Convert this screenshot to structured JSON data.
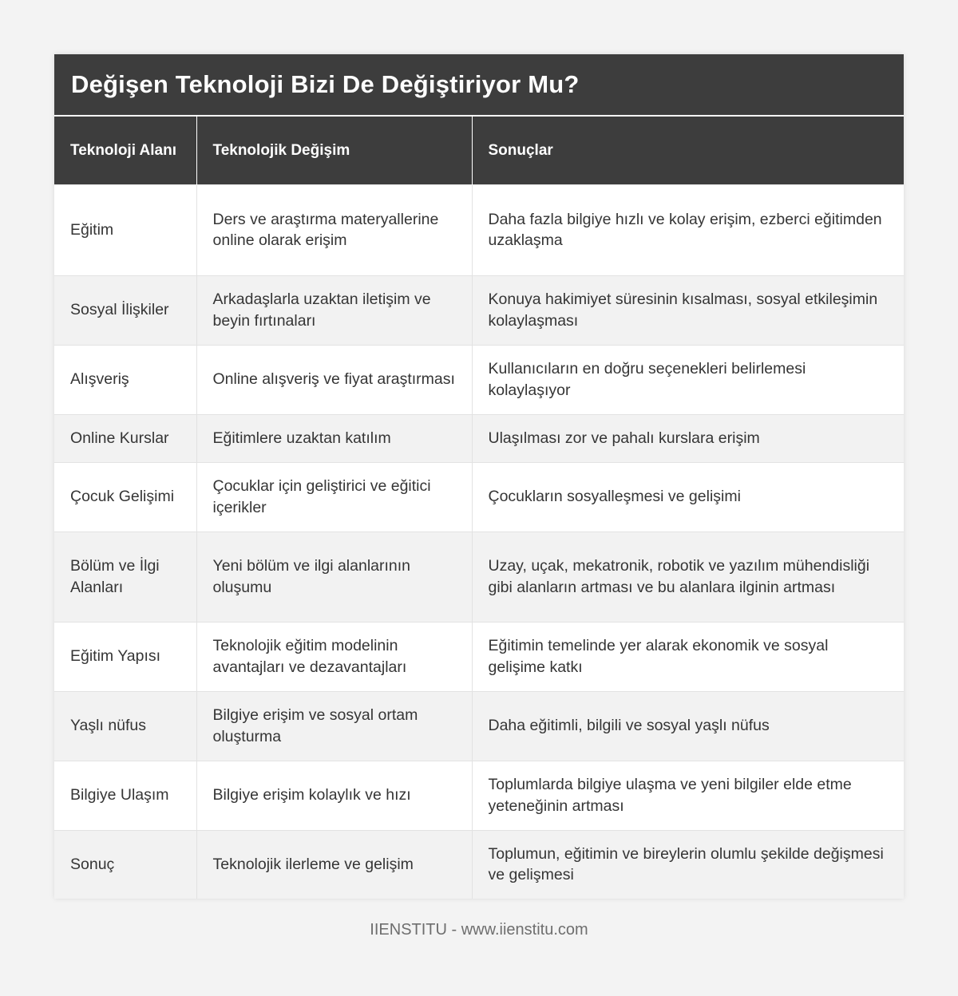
{
  "title": "Değişen Teknoloji Bizi De Değiştiriyor Mu?",
  "headers": [
    "Teknoloji Alanı",
    "Teknolojik Değişim",
    "Sonuçlar"
  ],
  "rows": [
    {
      "area": "Eğitim",
      "change": "Ders ve araştırma materyallerine online olarak erişim",
      "result": "Daha fazla bilgiye hızlı ve kolay erişim, ezberci eğitimden uzaklaşma"
    },
    {
      "area": "Sosyal İlişkiler",
      "change": "Arkadaşlarla uzaktan iletişim ve beyin fırtınaları",
      "result": "Konuya hakimiyet süresinin kısalması, sosyal etkileşimin kolaylaşması"
    },
    {
      "area": "Alışveriş",
      "change": "Online alışveriş ve fiyat araştırması",
      "result": "Kullanıcıların en doğru seçenekleri belirlemesi kolaylaşıyor"
    },
    {
      "area": "Online Kurslar",
      "change": "Eğitimlere uzaktan katılım",
      "result": "Ulaşılması zor ve pahalı kurslara erişim"
    },
    {
      "area": "Çocuk Gelişimi",
      "change": "Çocuklar için geliştirici ve eğitici içerikler",
      "result": "Çocukların sosyalleşmesi ve gelişimi"
    },
    {
      "area": "Bölüm ve İlgi Alanları",
      "change": "Yeni bölüm ve ilgi alanlarının oluşumu",
      "result": "Uzay, uçak, mekatronik, robotik ve yazılım mühendisliği gibi alanların artması ve bu alanlara ilginin artması"
    },
    {
      "area": "Eğitim Yapısı",
      "change": "Teknolojik eğitim modelinin avantajları ve dezavantajları",
      "result": "Eğitimin temelinde yer alarak ekonomik ve sosyal gelişime katkı"
    },
    {
      "area": "Yaşlı nüfus",
      "change": "Bilgiye erişim ve sosyal ortam oluşturma",
      "result": "Daha eğitimli, bilgili ve sosyal yaşlı nüfus"
    },
    {
      "area": "Bilgiye Ulaşım",
      "change": "Bilgiye erişim kolaylık ve hızı",
      "result": "Toplumlarda bilgiye ulaşma ve yeni bilgiler elde etme yeteneğinin artması"
    },
    {
      "area": "Sonuç",
      "change": "Teknolojik ilerleme ve gelişim",
      "result": "Toplumun, eğitimin ve bireylerin olumlu şekilde değişmesi ve gelişmesi"
    }
  ],
  "footer": "IIENSTITU - www.iienstitu.com"
}
